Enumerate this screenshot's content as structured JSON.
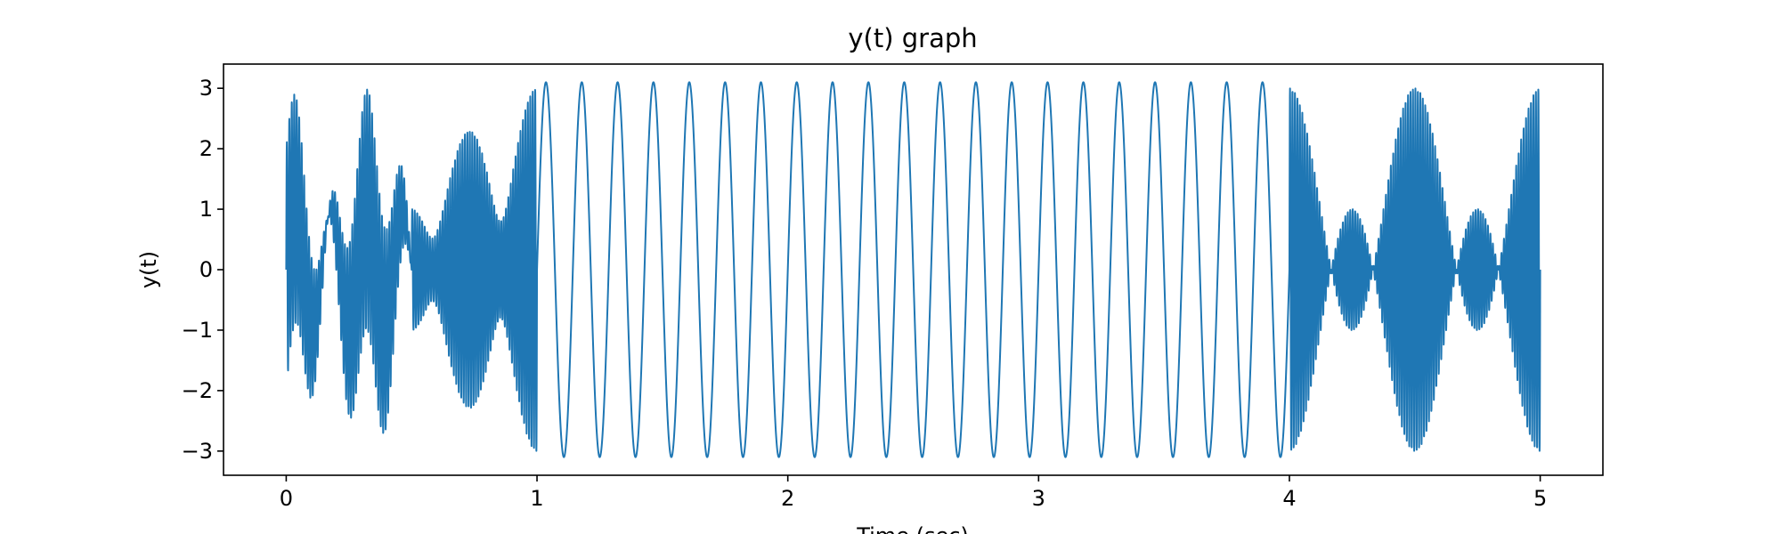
{
  "chart_data": {
    "type": "line",
    "title": "y(t) graph",
    "xlabel": "Time (sec)",
    "ylabel": "y(t)",
    "xlim": [
      -0.25,
      5.25
    ],
    "ylim": [
      -3.4,
      3.4
    ],
    "x_ticks": [
      0,
      1,
      2,
      3,
      4,
      5
    ],
    "x_tick_labels": [
      "0",
      "1",
      "2",
      "3",
      "4",
      "5"
    ],
    "y_ticks": [
      -3,
      -2,
      -1,
      0,
      1,
      2,
      3
    ],
    "y_tick_labels": [
      "−3",
      "−2",
      "−1",
      "0",
      "1",
      "2",
      "3"
    ],
    "grid": false,
    "series": [
      {
        "color": "#1f77b4",
        "segments": [
          {
            "t_start": 0.0,
            "t_end": 0.5,
            "sinusoids": [
              {
                "amplitude": 1.0,
                "frequency_hz": 7
              },
              {
                "amplitude": 1.0,
                "frequency_hz": 100
              },
              {
                "amplitude": 1.0,
                "frequency_hz": 103
              }
            ]
          },
          {
            "t_start": 0.5,
            "t_end": 1.0,
            "sinusoids": [
              {
                "amplitude": 1.0,
                "frequency_hz": 100
              },
              {
                "amplitude": 1.0,
                "frequency_hz": 103
              },
              {
                "amplitude": 1.0,
                "frequency_hz": 104
              }
            ]
          },
          {
            "t_start": 1.0,
            "t_end": 4.0,
            "sinusoids": [
              {
                "amplitude": 3.1,
                "frequency_hz": 7
              }
            ]
          },
          {
            "t_start": 4.0,
            "t_end": 5.0,
            "sinusoids": [
              {
                "amplitude": 1.0,
                "frequency_hz": 100
              },
              {
                "amplitude": 1.0,
                "frequency_hz": 102
              },
              {
                "amplitude": 1.0,
                "frequency_hz": 104
              }
            ]
          }
        ]
      }
    ]
  }
}
